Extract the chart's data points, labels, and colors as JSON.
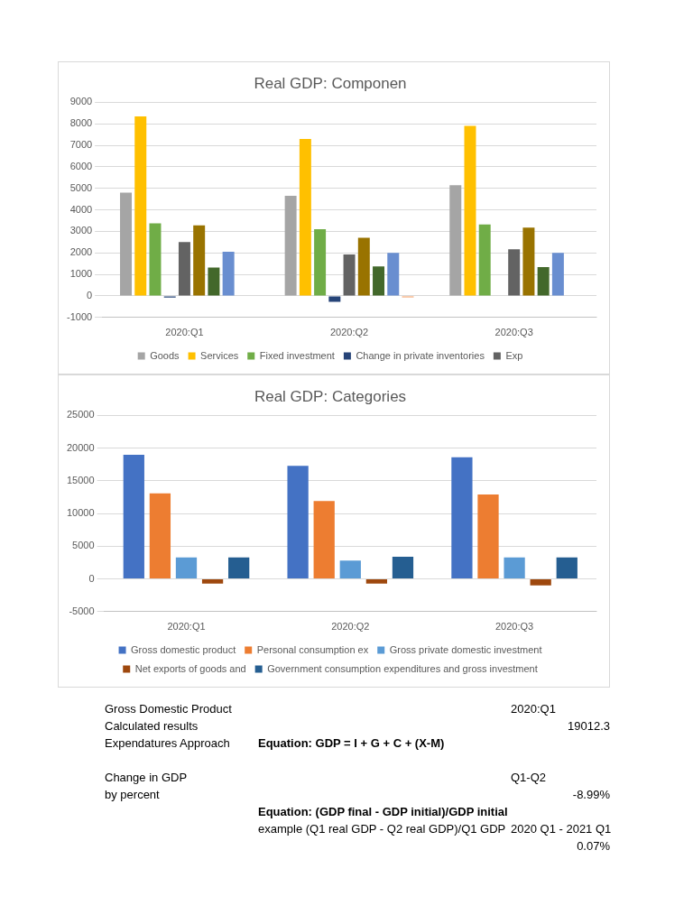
{
  "chart_data": [
    {
      "type": "bar",
      "title": "Real GDP: Componen",
      "categories": [
        "2020:Q1",
        "2020:Q2",
        "2020:Q3"
      ],
      "ylim": [
        -1000,
        9000
      ],
      "yticks": [
        -1000,
        0,
        1000,
        2000,
        3000,
        4000,
        5000,
        6000,
        7000,
        8000,
        9000
      ],
      "grid": "y",
      "legend": "bottom",
      "series": [
        {
          "name": "Goods",
          "color": "#a5a5a5",
          "values": [
            4800,
            4650,
            5150
          ]
        },
        {
          "name": "Services",
          "color": "#ffc000",
          "values": [
            8350,
            7300,
            7900
          ]
        },
        {
          "name": "Fixed investment",
          "color": "#70ad47",
          "values": [
            3370,
            3100,
            3320
          ]
        },
        {
          "name": "Change in private inventories",
          "color": "#264478",
          "values": [
            -70,
            -270,
            null
          ]
        },
        {
          "name": "Exp",
          "color": "#636363",
          "values": [
            2500,
            1930,
            2170
          ]
        },
        {
          "color": "#997300",
          "values": [
            3280,
            2700,
            3180
          ]
        },
        {
          "color": "#43682b",
          "values": [
            1320,
            1370,
            1340
          ]
        },
        {
          "color": "#698ed0",
          "values": [
            2050,
            2000,
            2000
          ]
        },
        {
          "color": "#f1975a",
          "values": [
            null,
            -60,
            null
          ]
        }
      ]
    },
    {
      "type": "bar",
      "title": "Real GDP: Categories",
      "categories": [
        "2020:Q1",
        "2020:Q2",
        "2020:Q3"
      ],
      "ylim": [
        -5000,
        25000
      ],
      "yticks": [
        -5000,
        0,
        5000,
        10000,
        15000,
        20000,
        25000
      ],
      "grid": "y",
      "legend": "bottom",
      "series": [
        {
          "name": "Gross domestic product",
          "color": "#4472c4",
          "values": [
            19000,
            17300,
            18600
          ]
        },
        {
          "name": "Personal consumption ex",
          "color": "#ed7d31",
          "values": [
            13100,
            11900,
            12900
          ]
        },
        {
          "name": "Gross private domestic investment",
          "color": "#5b9bd5",
          "values": [
            3300,
            2800,
            3300
          ]
        },
        {
          "name": "Net exports of goods and",
          "color": "#9e480e",
          "values": [
            -700,
            -700,
            -1000
          ]
        },
        {
          "name": "Government consumption expenditures and gross investment",
          "color": "#255e91",
          "values": [
            3300,
            3400,
            3300
          ]
        }
      ]
    },
    {
      "type": "other",
      "annotations": [
        "Gross Domestic Product",
        "2020:Q1",
        "Calculated results",
        "19012.3",
        "Expendatures Approach",
        "Equation: GDP = I + G + C + (X-M)",
        "Change in GDP",
        "Q1-Q2",
        "by percent",
        "-8.99%",
        "Equation: (GDP final - GDP initial)/GDP initial",
        "example (Q1 real GDP - Q2 real GDP)/Q1 GDP",
        "2020 Q1 - 2021 Q1",
        "0.07%"
      ]
    }
  ]
}
